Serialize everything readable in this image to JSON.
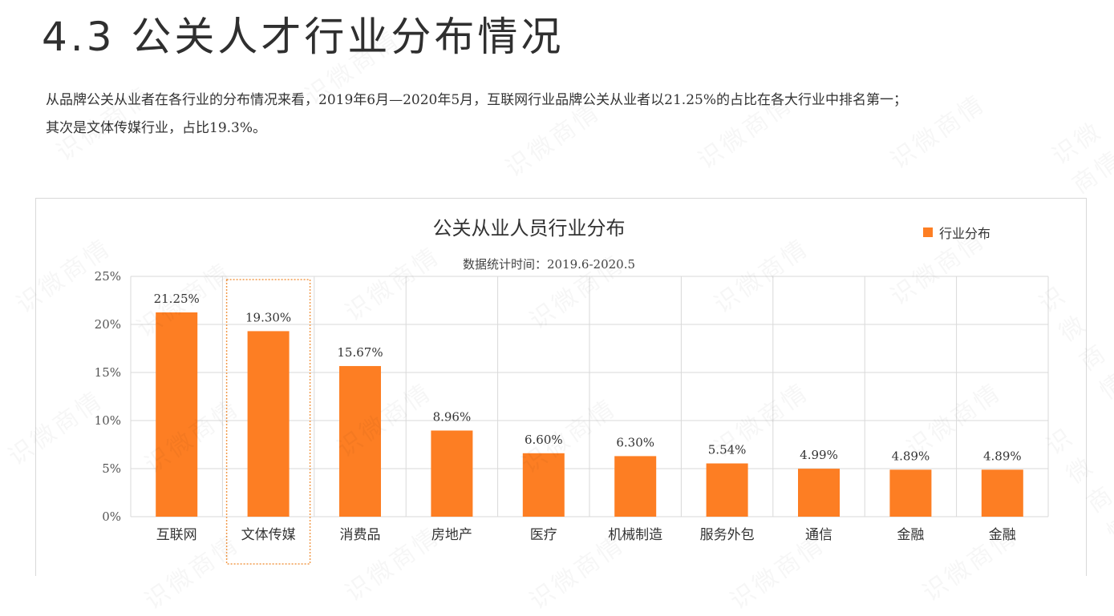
{
  "heading": "4.3 公关人才行业分布情况",
  "intro_line1": "从品牌公关从业者在各行业的分布情况来看，2019年6月—2020年5月，互联网行业品牌公关从业者以21.25%的占比在各大行业中排名第一；",
  "intro_line2": "其次是文体传媒行业，占比19.3%。",
  "watermark": "识微商情",
  "colors": {
    "bar": "#fd7e23",
    "grid": "#d9d9d9",
    "highlight": "#f29a4a"
  },
  "chart_data": {
    "type": "bar",
    "title": "公关从业人员行业分布",
    "subtitle": "数据统计时间：2019.6-2020.5",
    "legend": "行业分布",
    "legend_position": "top-right",
    "categories": [
      "互联网",
      "文体传媒",
      "消费品",
      "房地产",
      "医疗",
      "机械制造",
      "服务外包",
      "通信",
      "金融",
      "金融"
    ],
    "values": [
      21.25,
      19.3,
      15.67,
      8.96,
      6.6,
      6.3,
      5.54,
      4.99,
      4.89,
      4.89
    ],
    "value_labels": [
      "21.25%",
      "19.30%",
      "15.67%",
      "8.96%",
      "6.60%",
      "6.30%",
      "5.54%",
      "4.99%",
      "4.89%",
      "4.89%"
    ],
    "yticks": [
      0,
      5,
      10,
      15,
      20,
      25
    ],
    "ytick_labels": [
      "0%",
      "5%",
      "10%",
      "15%",
      "20%",
      "25%"
    ],
    "ylim": [
      0,
      25
    ],
    "grid": true,
    "highlighted_category": "文体传媒"
  }
}
